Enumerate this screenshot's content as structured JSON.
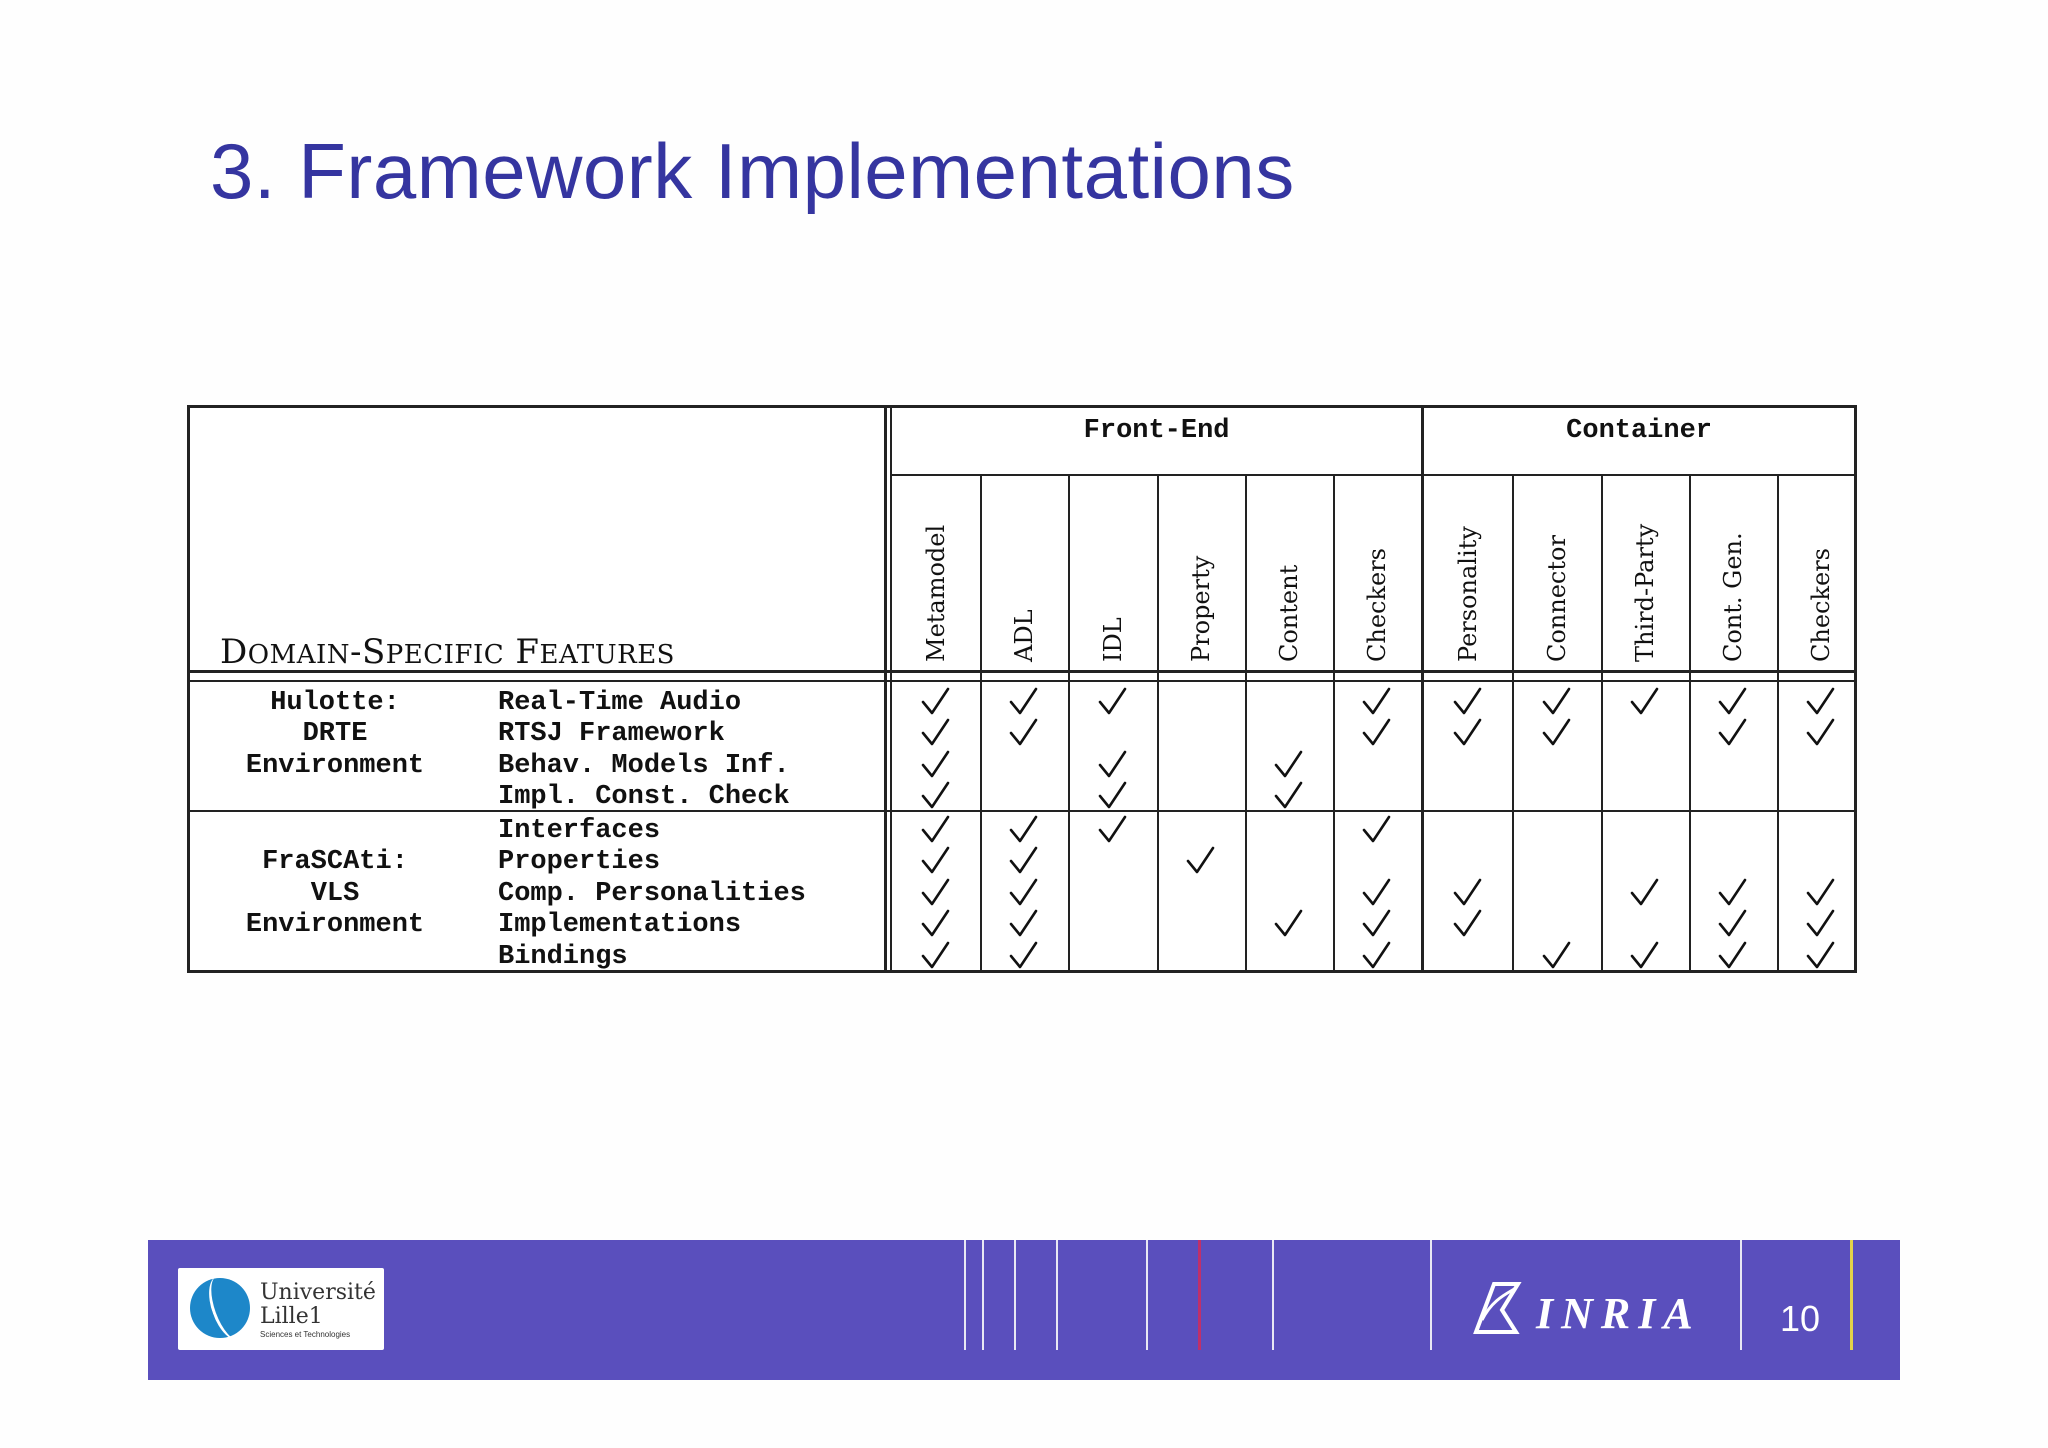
{
  "slide": {
    "title": "3.  Framework Implementations"
  },
  "table": {
    "corner_label_parts": [
      "D",
      "OMAIN",
      "-S",
      "PECIFIC",
      " F",
      "EATURES"
    ],
    "groups": [
      {
        "label": "Front-End",
        "columns": [
          "Metamodel",
          "ADL",
          "IDL",
          "Property",
          "Content",
          "Checkers"
        ]
      },
      {
        "label": "Container",
        "columns": [
          "Personality",
          "Connector",
          "Third-Party",
          "Cont. Gen.",
          "Checkers"
        ]
      }
    ],
    "sections": [
      {
        "name_lines": [
          "Hulotte:",
          "DRTE",
          "Environment"
        ],
        "features": [
          {
            "label": "Real-Time Audio",
            "checks": [
              1,
              1,
              1,
              0,
              0,
              1,
              1,
              1,
              1,
              1,
              1
            ]
          },
          {
            "label": "RTSJ Framework",
            "checks": [
              1,
              1,
              0,
              0,
              0,
              1,
              1,
              1,
              0,
              1,
              1
            ]
          },
          {
            "label": "Behav. Models Inf.",
            "checks": [
              1,
              0,
              1,
              0,
              1,
              0,
              0,
              0,
              0,
              0,
              0
            ]
          },
          {
            "label": "Impl. Const. Check",
            "checks": [
              1,
              0,
              1,
              0,
              1,
              0,
              0,
              0,
              0,
              0,
              0
            ]
          }
        ]
      },
      {
        "name_lines": [
          "FraSCAti:",
          "VLS",
          "Environment"
        ],
        "features": [
          {
            "label": "Interfaces",
            "checks": [
              1,
              1,
              1,
              0,
              0,
              1,
              0,
              0,
              0,
              0,
              0
            ]
          },
          {
            "label": "Properties",
            "checks": [
              1,
              1,
              0,
              1,
              0,
              0,
              0,
              0,
              0,
              0,
              0
            ]
          },
          {
            "label": "Comp. Personalities",
            "checks": [
              1,
              1,
              0,
              0,
              0,
              1,
              1,
              0,
              1,
              1,
              1
            ]
          },
          {
            "label": "Implementations",
            "checks": [
              1,
              1,
              0,
              0,
              1,
              1,
              1,
              0,
              0,
              1,
              1
            ]
          },
          {
            "label": "Bindings",
            "checks": [
              1,
              1,
              0,
              0,
              0,
              1,
              0,
              1,
              1,
              1,
              1
            ]
          }
        ]
      }
    ]
  },
  "footer": {
    "university_line1": "Université",
    "university_line2": "Lille1",
    "university_line3": "Sciences et Technologies",
    "inria_label": "INRIA",
    "page_number": "10",
    "colors": {
      "band": "#5a4fbd",
      "title": "#3535a0"
    }
  }
}
